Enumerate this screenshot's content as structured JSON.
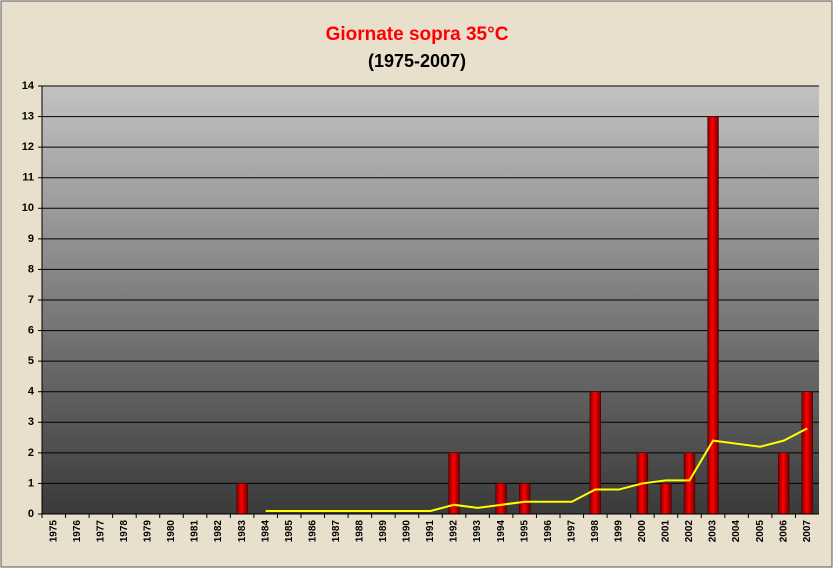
{
  "chart_data": {
    "type": "bar",
    "title": "Giornate sopra 35°C",
    "subtitle": "(1975-2007)",
    "categories": [
      "1975",
      "1976",
      "1977",
      "1978",
      "1979",
      "1980",
      "1981",
      "1982",
      "1983",
      "1984",
      "1985",
      "1986",
      "1987",
      "1988",
      "1989",
      "1990",
      "1991",
      "1992",
      "1993",
      "1994",
      "1995",
      "1996",
      "1997",
      "1998",
      "1999",
      "2000",
      "2001",
      "2002",
      "2003",
      "2004",
      "2005",
      "2006",
      "2007"
    ],
    "series": [
      {
        "type": "bar",
        "color": "#ff0000",
        "values": [
          0,
          0,
          0,
          0,
          0,
          0,
          0,
          0,
          1,
          0,
          0,
          0,
          0,
          0,
          0,
          0,
          0,
          2,
          0,
          1,
          1,
          0,
          0,
          4,
          0,
          2,
          1,
          2,
          13,
          0,
          0,
          2,
          4
        ]
      },
      {
        "type": "line",
        "color": "#ffff00",
        "values": [
          null,
          null,
          null,
          null,
          null,
          null,
          null,
          null,
          null,
          0.1,
          0.1,
          0.1,
          0.1,
          0.1,
          0.1,
          0.1,
          0.1,
          0.3,
          0.2,
          0.3,
          0.4,
          0.4,
          0.4,
          0.8,
          0.8,
          1.0,
          1.1,
          1.1,
          2.4,
          2.3,
          2.2,
          2.4,
          2.8
        ]
      }
    ],
    "ylim": [
      0,
      14
    ],
    "yticks": [
      0,
      1,
      2,
      3,
      4,
      5,
      6,
      7,
      8,
      9,
      10,
      11,
      12,
      13,
      14
    ],
    "grid": true
  }
}
